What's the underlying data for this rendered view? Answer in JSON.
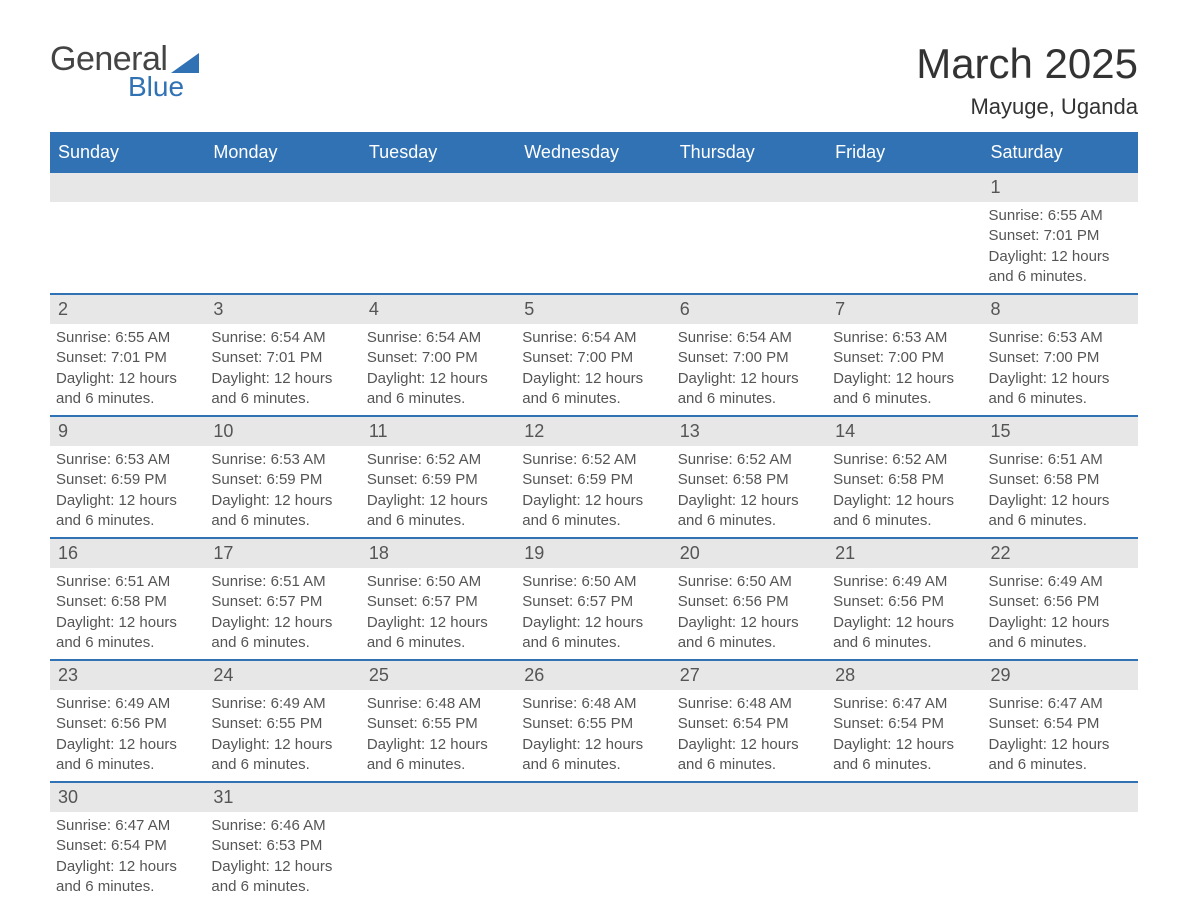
{
  "logo": {
    "text1": "General",
    "text2": "Blue",
    "text_color": "#444444",
    "accent_color": "#3072b3"
  },
  "title": "March 2025",
  "location": "Mayuge, Uganda",
  "colors": {
    "header_bg": "#3072b3",
    "header_text": "#ffffff",
    "daynum_bg": "#e7e7e7",
    "border": "#3072b3",
    "body_text": "#555555",
    "title_text": "#333333",
    "background": "#ffffff"
  },
  "fonts": {
    "title_pt": 42,
    "location_pt": 22,
    "header_pt": 18,
    "daynum_pt": 18,
    "data_pt": 15
  },
  "day_headers": [
    "Sunday",
    "Monday",
    "Tuesday",
    "Wednesday",
    "Thursday",
    "Friday",
    "Saturday"
  ],
  "weeks": [
    [
      null,
      null,
      null,
      null,
      null,
      null,
      {
        "n": "1",
        "sunrise": "Sunrise: 6:55 AM",
        "sunset": "Sunset: 7:01 PM",
        "daylight": "Daylight: 12 hours and 6 minutes."
      }
    ],
    [
      {
        "n": "2",
        "sunrise": "Sunrise: 6:55 AM",
        "sunset": "Sunset: 7:01 PM",
        "daylight": "Daylight: 12 hours and 6 minutes."
      },
      {
        "n": "3",
        "sunrise": "Sunrise: 6:54 AM",
        "sunset": "Sunset: 7:01 PM",
        "daylight": "Daylight: 12 hours and 6 minutes."
      },
      {
        "n": "4",
        "sunrise": "Sunrise: 6:54 AM",
        "sunset": "Sunset: 7:00 PM",
        "daylight": "Daylight: 12 hours and 6 minutes."
      },
      {
        "n": "5",
        "sunrise": "Sunrise: 6:54 AM",
        "sunset": "Sunset: 7:00 PM",
        "daylight": "Daylight: 12 hours and 6 minutes."
      },
      {
        "n": "6",
        "sunrise": "Sunrise: 6:54 AM",
        "sunset": "Sunset: 7:00 PM",
        "daylight": "Daylight: 12 hours and 6 minutes."
      },
      {
        "n": "7",
        "sunrise": "Sunrise: 6:53 AM",
        "sunset": "Sunset: 7:00 PM",
        "daylight": "Daylight: 12 hours and 6 minutes."
      },
      {
        "n": "8",
        "sunrise": "Sunrise: 6:53 AM",
        "sunset": "Sunset: 7:00 PM",
        "daylight": "Daylight: 12 hours and 6 minutes."
      }
    ],
    [
      {
        "n": "9",
        "sunrise": "Sunrise: 6:53 AM",
        "sunset": "Sunset: 6:59 PM",
        "daylight": "Daylight: 12 hours and 6 minutes."
      },
      {
        "n": "10",
        "sunrise": "Sunrise: 6:53 AM",
        "sunset": "Sunset: 6:59 PM",
        "daylight": "Daylight: 12 hours and 6 minutes."
      },
      {
        "n": "11",
        "sunrise": "Sunrise: 6:52 AM",
        "sunset": "Sunset: 6:59 PM",
        "daylight": "Daylight: 12 hours and 6 minutes."
      },
      {
        "n": "12",
        "sunrise": "Sunrise: 6:52 AM",
        "sunset": "Sunset: 6:59 PM",
        "daylight": "Daylight: 12 hours and 6 minutes."
      },
      {
        "n": "13",
        "sunrise": "Sunrise: 6:52 AM",
        "sunset": "Sunset: 6:58 PM",
        "daylight": "Daylight: 12 hours and 6 minutes."
      },
      {
        "n": "14",
        "sunrise": "Sunrise: 6:52 AM",
        "sunset": "Sunset: 6:58 PM",
        "daylight": "Daylight: 12 hours and 6 minutes."
      },
      {
        "n": "15",
        "sunrise": "Sunrise: 6:51 AM",
        "sunset": "Sunset: 6:58 PM",
        "daylight": "Daylight: 12 hours and 6 minutes."
      }
    ],
    [
      {
        "n": "16",
        "sunrise": "Sunrise: 6:51 AM",
        "sunset": "Sunset: 6:58 PM",
        "daylight": "Daylight: 12 hours and 6 minutes."
      },
      {
        "n": "17",
        "sunrise": "Sunrise: 6:51 AM",
        "sunset": "Sunset: 6:57 PM",
        "daylight": "Daylight: 12 hours and 6 minutes."
      },
      {
        "n": "18",
        "sunrise": "Sunrise: 6:50 AM",
        "sunset": "Sunset: 6:57 PM",
        "daylight": "Daylight: 12 hours and 6 minutes."
      },
      {
        "n": "19",
        "sunrise": "Sunrise: 6:50 AM",
        "sunset": "Sunset: 6:57 PM",
        "daylight": "Daylight: 12 hours and 6 minutes."
      },
      {
        "n": "20",
        "sunrise": "Sunrise: 6:50 AM",
        "sunset": "Sunset: 6:56 PM",
        "daylight": "Daylight: 12 hours and 6 minutes."
      },
      {
        "n": "21",
        "sunrise": "Sunrise: 6:49 AM",
        "sunset": "Sunset: 6:56 PM",
        "daylight": "Daylight: 12 hours and 6 minutes."
      },
      {
        "n": "22",
        "sunrise": "Sunrise: 6:49 AM",
        "sunset": "Sunset: 6:56 PM",
        "daylight": "Daylight: 12 hours and 6 minutes."
      }
    ],
    [
      {
        "n": "23",
        "sunrise": "Sunrise: 6:49 AM",
        "sunset": "Sunset: 6:56 PM",
        "daylight": "Daylight: 12 hours and 6 minutes."
      },
      {
        "n": "24",
        "sunrise": "Sunrise: 6:49 AM",
        "sunset": "Sunset: 6:55 PM",
        "daylight": "Daylight: 12 hours and 6 minutes."
      },
      {
        "n": "25",
        "sunrise": "Sunrise: 6:48 AM",
        "sunset": "Sunset: 6:55 PM",
        "daylight": "Daylight: 12 hours and 6 minutes."
      },
      {
        "n": "26",
        "sunrise": "Sunrise: 6:48 AM",
        "sunset": "Sunset: 6:55 PM",
        "daylight": "Daylight: 12 hours and 6 minutes."
      },
      {
        "n": "27",
        "sunrise": "Sunrise: 6:48 AM",
        "sunset": "Sunset: 6:54 PM",
        "daylight": "Daylight: 12 hours and 6 minutes."
      },
      {
        "n": "28",
        "sunrise": "Sunrise: 6:47 AM",
        "sunset": "Sunset: 6:54 PM",
        "daylight": "Daylight: 12 hours and 6 minutes."
      },
      {
        "n": "29",
        "sunrise": "Sunrise: 6:47 AM",
        "sunset": "Sunset: 6:54 PM",
        "daylight": "Daylight: 12 hours and 6 minutes."
      }
    ],
    [
      {
        "n": "30",
        "sunrise": "Sunrise: 6:47 AM",
        "sunset": "Sunset: 6:54 PM",
        "daylight": "Daylight: 12 hours and 6 minutes."
      },
      {
        "n": "31",
        "sunrise": "Sunrise: 6:46 AM",
        "sunset": "Sunset: 6:53 PM",
        "daylight": "Daylight: 12 hours and 6 minutes."
      },
      null,
      null,
      null,
      null,
      null
    ]
  ]
}
